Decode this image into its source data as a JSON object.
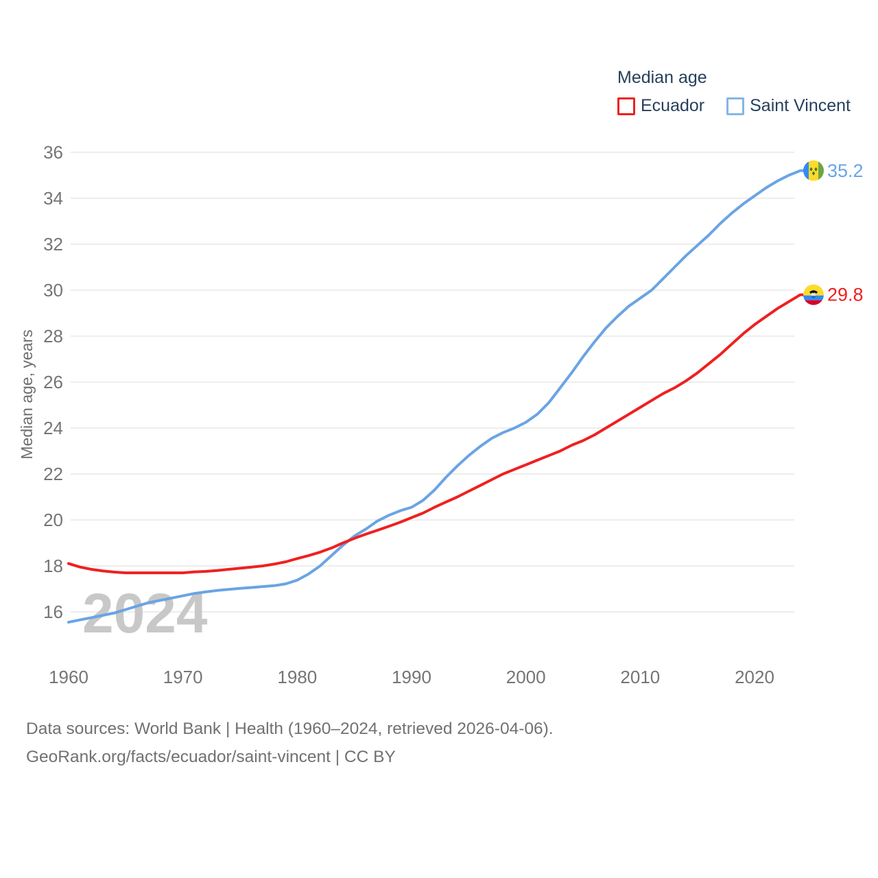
{
  "legend": {
    "title": "Median age",
    "items": [
      {
        "label": "Ecuador",
        "color": "#ef2020"
      },
      {
        "label": "Saint Vincent",
        "color": "#6aa4e4"
      }
    ]
  },
  "chart": {
    "y_axis_title": "Median age, years",
    "watermark": "2024"
  },
  "chart_data": {
    "type": "line",
    "title": "Median age",
    "xlabel": "",
    "ylabel": "Median age, years",
    "xlim": [
      1960,
      2024
    ],
    "ylim": [
      15,
      36.8
    ],
    "xticks": [
      1960,
      1970,
      1980,
      1990,
      2000,
      2010,
      2020
    ],
    "yticks": [
      16,
      18,
      20,
      22,
      24,
      26,
      28,
      30,
      32,
      34,
      36
    ],
    "grid": true,
    "legend_position": "top-right",
    "x": [
      1960,
      1961,
      1962,
      1963,
      1964,
      1965,
      1966,
      1967,
      1968,
      1969,
      1970,
      1971,
      1972,
      1973,
      1974,
      1975,
      1976,
      1977,
      1978,
      1979,
      1980,
      1981,
      1982,
      1983,
      1984,
      1985,
      1986,
      1987,
      1988,
      1989,
      1990,
      1991,
      1992,
      1993,
      1994,
      1995,
      1996,
      1997,
      1998,
      1999,
      2000,
      2001,
      2002,
      2003,
      2004,
      2005,
      2006,
      2007,
      2008,
      2009,
      2010,
      2011,
      2012,
      2013,
      2014,
      2015,
      2016,
      2017,
      2018,
      2019,
      2020,
      2021,
      2022,
      2023,
      2024
    ],
    "series": [
      {
        "name": "Ecuador",
        "color": "#ef2020",
        "end_label": "29.8",
        "flag": "ecuador",
        "values": [
          18.1,
          17.95,
          17.85,
          17.78,
          17.73,
          17.7,
          17.7,
          17.7,
          17.7,
          17.7,
          17.7,
          17.74,
          17.76,
          17.8,
          17.85,
          17.9,
          17.95,
          18.0,
          18.08,
          18.18,
          18.32,
          18.45,
          18.6,
          18.78,
          19.0,
          19.2,
          19.38,
          19.55,
          19.72,
          19.9,
          20.1,
          20.3,
          20.55,
          20.78,
          21.0,
          21.25,
          21.5,
          21.75,
          22.0,
          22.2,
          22.4,
          22.6,
          22.8,
          23.0,
          23.25,
          23.45,
          23.7,
          24.0,
          24.3,
          24.6,
          24.9,
          25.2,
          25.5,
          25.75,
          26.05,
          26.4,
          26.8,
          27.2,
          27.65,
          28.1,
          28.5,
          28.85,
          29.2,
          29.5,
          29.8
        ]
      },
      {
        "name": "Saint Vincent",
        "color": "#6aa4e4",
        "end_label": "35.2",
        "flag": "saint-vincent",
        "values": [
          15.55,
          15.65,
          15.75,
          15.85,
          15.95,
          16.1,
          16.25,
          16.4,
          16.5,
          16.6,
          16.7,
          16.8,
          16.87,
          16.93,
          16.98,
          17.02,
          17.06,
          17.1,
          17.14,
          17.22,
          17.38,
          17.65,
          18.0,
          18.45,
          18.9,
          19.3,
          19.6,
          19.95,
          20.2,
          20.4,
          20.55,
          20.85,
          21.3,
          21.85,
          22.35,
          22.8,
          23.2,
          23.55,
          23.8,
          24.0,
          24.25,
          24.6,
          25.1,
          25.75,
          26.4,
          27.1,
          27.75,
          28.35,
          28.85,
          29.3,
          29.65,
          30.0,
          30.5,
          31.0,
          31.5,
          31.95,
          32.4,
          32.9,
          33.35,
          33.75,
          34.1,
          34.45,
          34.75,
          35.0,
          35.2
        ]
      }
    ]
  },
  "footer": {
    "line1": "Data sources: World Bank | Health (1960–2024, retrieved 2026-04-06).",
    "line2": "GeoRank.org/facts/ecuador/saint-vincent | CC BY"
  }
}
